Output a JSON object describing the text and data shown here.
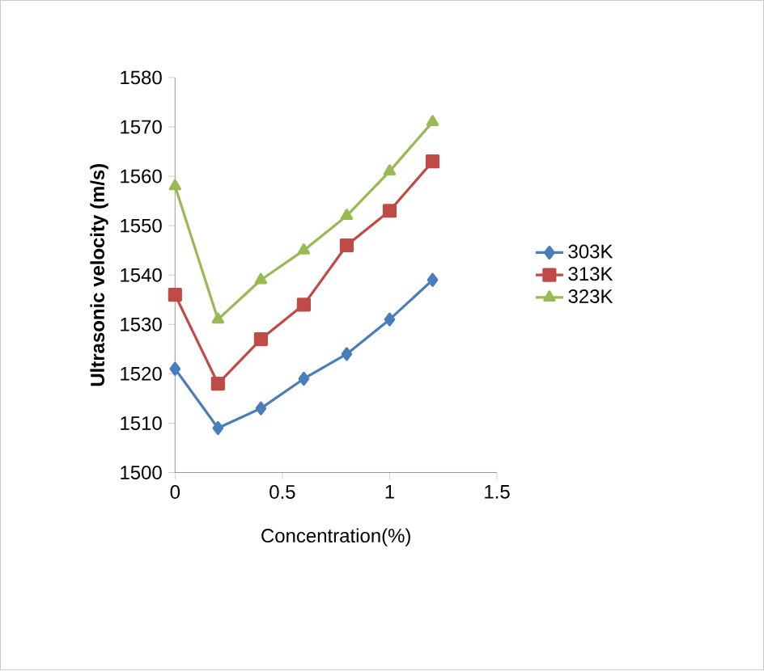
{
  "chart_data": {
    "type": "line",
    "xlabel": "Concentration(%)",
    "ylabel": "Ultrasonic velocity (m/s)",
    "x": [
      0,
      0.2,
      0.4,
      0.6,
      0.8,
      1.0,
      1.2
    ],
    "series": [
      {
        "name": "303K",
        "color": "#4a7ebb",
        "marker": "diamond",
        "values": [
          1521,
          1509,
          1513,
          1519,
          1524,
          1531,
          1539
        ]
      },
      {
        "name": "313K",
        "color": "#be4b48",
        "marker": "square",
        "values": [
          1536,
          1518,
          1527,
          1534,
          1546,
          1553,
          1563
        ]
      },
      {
        "name": "323K",
        "color": "#98b954",
        "marker": "triangle",
        "values": [
          1558,
          1531,
          1539,
          1545,
          1552,
          1561,
          1571
        ]
      }
    ],
    "xlim": [
      0,
      1.5
    ],
    "xticks": [
      0,
      0.5,
      1,
      1.5
    ],
    "ylim": [
      1500,
      1580
    ],
    "yticks": [
      1500,
      1510,
      1520,
      1530,
      1540,
      1550,
      1560,
      1570,
      1580
    ],
    "grid": false,
    "legend": "right"
  }
}
